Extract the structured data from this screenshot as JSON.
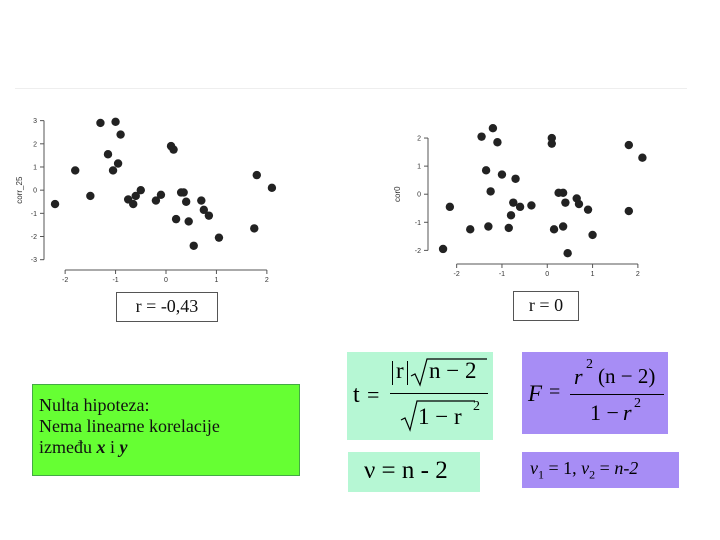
{
  "chart_data": [
    {
      "type": "scatter",
      "ylabel": "corr_25",
      "xlim": [
        -2.3,
        2.3
      ],
      "ylim": [
        -3.1,
        3.2
      ],
      "x_ticks": [
        -2,
        -1,
        0,
        1,
        2
      ],
      "y_ticks": [
        3,
        2,
        1,
        0,
        -1,
        -2,
        -3
      ],
      "x_tick_labels": [
        "-2",
        "-1",
        "0",
        "1",
        "2"
      ],
      "y_tick_labels": [
        "3",
        "2",
        "1",
        "0",
        "-1",
        "-2",
        "-3"
      ],
      "points": [
        [
          -2.2,
          -0.6
        ],
        [
          -1.8,
          0.85
        ],
        [
          -1.5,
          -0.25
        ],
        [
          -1.3,
          2.9
        ],
        [
          -1.15,
          1.55
        ],
        [
          -1.05,
          0.85
        ],
        [
          -1.0,
          2.95
        ],
        [
          -0.95,
          1.15
        ],
        [
          -0.9,
          2.4
        ],
        [
          -0.75,
          -0.4
        ],
        [
          -0.65,
          -0.6
        ],
        [
          -0.6,
          -0.25
        ],
        [
          -0.5,
          0.0
        ],
        [
          -0.2,
          -0.45
        ],
        [
          -0.1,
          -0.2
        ],
        [
          0.1,
          1.9
        ],
        [
          0.15,
          1.75
        ],
        [
          0.2,
          -1.25
        ],
        [
          0.3,
          -0.1
        ],
        [
          0.35,
          -0.1
        ],
        [
          0.4,
          -0.5
        ],
        [
          0.45,
          -1.35
        ],
        [
          0.55,
          -2.4
        ],
        [
          0.7,
          -0.45
        ],
        [
          0.75,
          -0.85
        ],
        [
          0.85,
          -1.1
        ],
        [
          1.05,
          -2.05
        ],
        [
          1.75,
          -1.65
        ],
        [
          1.8,
          0.65
        ],
        [
          2.1,
          0.1
        ]
      ]
    },
    {
      "type": "scatter",
      "ylabel": "cor0",
      "xlim": [
        -2.5,
        2.4
      ],
      "ylim": [
        -2.2,
        2.5
      ],
      "x_ticks": [
        -2,
        -1,
        0,
        1,
        2
      ],
      "y_ticks": [
        2,
        1,
        0,
        -1,
        -2
      ],
      "x_tick_labels": [
        "-2",
        "-1",
        "0",
        "1",
        "2"
      ],
      "y_tick_labels": [
        "2",
        "1",
        "0",
        "-1",
        "-2"
      ],
      "points": [
        [
          -2.3,
          -1.95
        ],
        [
          -2.15,
          -0.45
        ],
        [
          -1.7,
          -1.25
        ],
        [
          -1.45,
          2.05
        ],
        [
          -1.35,
          0.85
        ],
        [
          -1.25,
          0.1
        ],
        [
          -1.3,
          -1.15
        ],
        [
          -1.2,
          2.35
        ],
        [
          -1.1,
          1.85
        ],
        [
          -1.0,
          0.7
        ],
        [
          -0.85,
          -1.2
        ],
        [
          -0.8,
          -0.75
        ],
        [
          -0.75,
          -0.3
        ],
        [
          -0.7,
          0.55
        ],
        [
          -0.6,
          -0.45
        ],
        [
          -0.35,
          -0.4
        ],
        [
          0.1,
          2.0
        ],
        [
          0.1,
          1.8
        ],
        [
          0.15,
          -1.25
        ],
        [
          0.25,
          0.05
        ],
        [
          0.35,
          0.05
        ],
        [
          0.4,
          -0.3
        ],
        [
          0.35,
          -1.15
        ],
        [
          0.45,
          -2.1
        ],
        [
          0.65,
          -0.15
        ],
        [
          0.7,
          -0.35
        ],
        [
          0.9,
          -0.55
        ],
        [
          1.0,
          -1.45
        ],
        [
          1.8,
          1.75
        ],
        [
          1.8,
          -0.6
        ],
        [
          2.1,
          1.3
        ]
      ]
    }
  ],
  "r_labels": {
    "left": "r = -0,43",
    "right": "r = 0"
  },
  "hypothesis": {
    "line1": "Nulta hipoteza:",
    "line2": "Nema linearne korelacije",
    "line3_prefix": "između",
    "var_x": "x",
    "conj": "i",
    "var_y": "y"
  },
  "formula_t": {
    "lhs": "t",
    "eq": "=",
    "r": "r",
    "n_minus_2": "n − 2",
    "one_minus": "1 − r",
    "sup2": "2"
  },
  "formula_df": {
    "text": "ν = n - 2"
  },
  "formula_F": {
    "lhs": "F",
    "eq": "=",
    "r": "r",
    "sup2": "2",
    "n_part": "(n − 2)",
    "one_minus": "1 − ",
    "r2": "r",
    "sup2b": "2"
  },
  "degrees": {
    "v1": "v",
    "sub1": "1",
    "eq1": " = 1, ",
    "v2": "v",
    "sub2": "2",
    "eq2": " = ",
    "n2": "n-2"
  },
  "colors": {
    "hyp_bg": "#66ff33",
    "formula_green": "#b6f7d4",
    "formula_purple": "#a78df5",
    "dot": "#222222"
  }
}
